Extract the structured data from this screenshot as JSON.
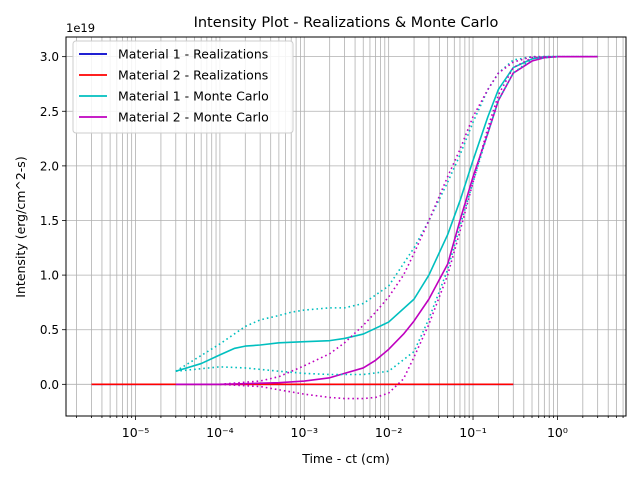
{
  "chart_data": {
    "type": "line",
    "title": "Intensity Plot - Realizations & Monte Carlo",
    "xlabel": "Time - ct (cm)",
    "ylabel": "Intensity (erg/cm^2-s)",
    "x_scale": "log",
    "xlim": [
      1.5e-06,
      6.5
    ],
    "ylim": [
      -0.29,
      3.18
    ],
    "y_offset_label": "1e19",
    "y_ticks": [
      0.0,
      0.5,
      1.0,
      1.5,
      2.0,
      2.5,
      3.0
    ],
    "y_tick_labels": [
      "0.0",
      "0.5",
      "1.0",
      "1.5",
      "2.0",
      "2.5",
      "3.0"
    ],
    "x_ticks": [
      1e-05,
      0.0001,
      0.001,
      0.01,
      0.1,
      1
    ],
    "x_tick_labels": [
      "10⁻⁵",
      "10⁻⁴",
      "10⁻³",
      "10⁻²",
      "10⁻¹",
      "10⁰"
    ],
    "grid": true,
    "legend_position": "upper-left",
    "colors": {
      "material_1_realizations": "#0000cc",
      "material_2_realizations": "#ff0000",
      "material_1_monte_carlo": "#00bfbf",
      "material_2_monte_carlo": "#bf00bf"
    },
    "series": [
      {
        "name": "Material 1 - Realizations",
        "color": "#0000cc",
        "style": "solid",
        "x": [
          3.01e-06,
          0.0001,
          0.001,
          0.01,
          0.03,
          0.05,
          0.1,
          0.2,
          0.3
        ],
        "y": [
          0,
          0,
          0,
          0,
          0,
          0,
          0,
          0,
          0
        ]
      },
      {
        "name": "Material 2 - Realizations",
        "color": "#ff0000",
        "style": "solid",
        "x": [
          3.01e-06,
          0.0001,
          0.001,
          0.01,
          0.03,
          0.05,
          0.1,
          0.2,
          0.3
        ],
        "y": [
          0,
          0,
          0,
          0,
          0,
          0,
          0,
          0,
          0
        ]
      },
      {
        "name": "Material 1 - Monte Carlo",
        "color": "#00bfbf",
        "style": "solid",
        "x": [
          3e-05,
          6e-05,
          0.0001,
          0.00015,
          0.0002,
          0.0003,
          0.0005,
          0.001,
          0.002,
          0.003,
          0.005,
          0.01,
          0.02,
          0.03,
          0.05,
          0.07,
          0.1,
          0.15,
          0.2,
          0.3,
          0.5,
          0.7,
          1,
          1.5,
          2,
          3
        ],
        "y": [
          0.12,
          0.19,
          0.27,
          0.33,
          0.35,
          0.36,
          0.38,
          0.39,
          0.4,
          0.42,
          0.46,
          0.57,
          0.78,
          1.0,
          1.37,
          1.68,
          2.05,
          2.45,
          2.7,
          2.9,
          2.98,
          3.0,
          3.0,
          3.0,
          3.0,
          3.0
        ]
      },
      {
        "name": "Material 2 - Monte Carlo",
        "color": "#bf00bf",
        "style": "solid",
        "x": [
          3e-05,
          0.0001,
          0.0003,
          0.0005,
          0.001,
          0.002,
          0.003,
          0.005,
          0.007,
          0.01,
          0.015,
          0.02,
          0.03,
          0.05,
          0.07,
          0.1,
          0.15,
          0.2,
          0.3,
          0.5,
          0.7,
          1,
          1.5,
          2,
          3
        ],
        "y": [
          0,
          0,
          0.01,
          0.015,
          0.03,
          0.06,
          0.1,
          0.15,
          0.22,
          0.32,
          0.46,
          0.58,
          0.78,
          1.1,
          1.5,
          1.9,
          2.3,
          2.6,
          2.85,
          2.96,
          2.99,
          3.0,
          3.0,
          3.0,
          3.0
        ]
      },
      {
        "color": "#00bfbf",
        "style": "dotted",
        "x": [
          3e-05,
          0.0001,
          0.0002,
          0.0003,
          0.0005,
          0.0007,
          0.001,
          0.002,
          0.003,
          0.005,
          0.01,
          0.02,
          0.03,
          0.05,
          0.07,
          0.1,
          0.15,
          0.2,
          0.3,
          0.5,
          0.7,
          1
        ],
        "y": [
          0.12,
          0.37,
          0.53,
          0.59,
          0.63,
          0.66,
          0.68,
          0.7,
          0.7,
          0.74,
          0.9,
          1.25,
          1.5,
          1.85,
          2.1,
          2.4,
          2.7,
          2.85,
          2.97,
          3.0,
          3.0,
          3.0
        ]
      },
      {
        "color": "#00bfbf",
        "style": "dotted",
        "x": [
          3e-05,
          0.0001,
          0.0002,
          0.0005,
          0.001,
          0.002,
          0.005,
          0.01,
          0.02,
          0.03,
          0.05,
          0.07,
          0.1,
          0.15,
          0.2,
          0.3,
          0.5,
          1
        ],
        "y": [
          0.12,
          0.16,
          0.15,
          0.12,
          0.1,
          0.09,
          0.09,
          0.12,
          0.3,
          0.6,
          1.05,
          1.45,
          1.85,
          2.3,
          2.6,
          2.85,
          2.98,
          3.0
        ]
      },
      {
        "color": "#bf00bf",
        "style": "dotted",
        "x": [
          0.0001,
          0.0003,
          0.0005,
          0.001,
          0.002,
          0.003,
          0.005,
          0.007,
          0.01,
          0.015,
          0.02,
          0.03,
          0.05,
          0.07,
          0.1,
          0.15,
          0.2,
          0.3,
          0.5,
          1,
          2,
          3
        ],
        "y": [
          0,
          0.03,
          0.07,
          0.17,
          0.28,
          0.38,
          0.54,
          0.66,
          0.8,
          1.0,
          1.2,
          1.5,
          1.9,
          2.15,
          2.45,
          2.7,
          2.85,
          2.95,
          3.0,
          3.0,
          3.0,
          3.0
        ]
      },
      {
        "color": "#bf00bf",
        "style": "dotted",
        "x": [
          0.0001,
          0.0003,
          0.0005,
          0.001,
          0.002,
          0.003,
          0.005,
          0.007,
          0.01,
          0.015,
          0.02,
          0.03,
          0.05,
          0.07,
          0.1,
          0.15,
          0.2,
          0.3,
          0.5,
          1,
          2,
          3
        ],
        "y": [
          0,
          -0.02,
          -0.05,
          -0.09,
          -0.12,
          -0.13,
          -0.13,
          -0.12,
          -0.08,
          0.05,
          0.25,
          0.55,
          1.0,
          1.4,
          1.85,
          2.35,
          2.65,
          2.9,
          2.99,
          3.0,
          3.0,
          3.0
        ]
      }
    ]
  }
}
